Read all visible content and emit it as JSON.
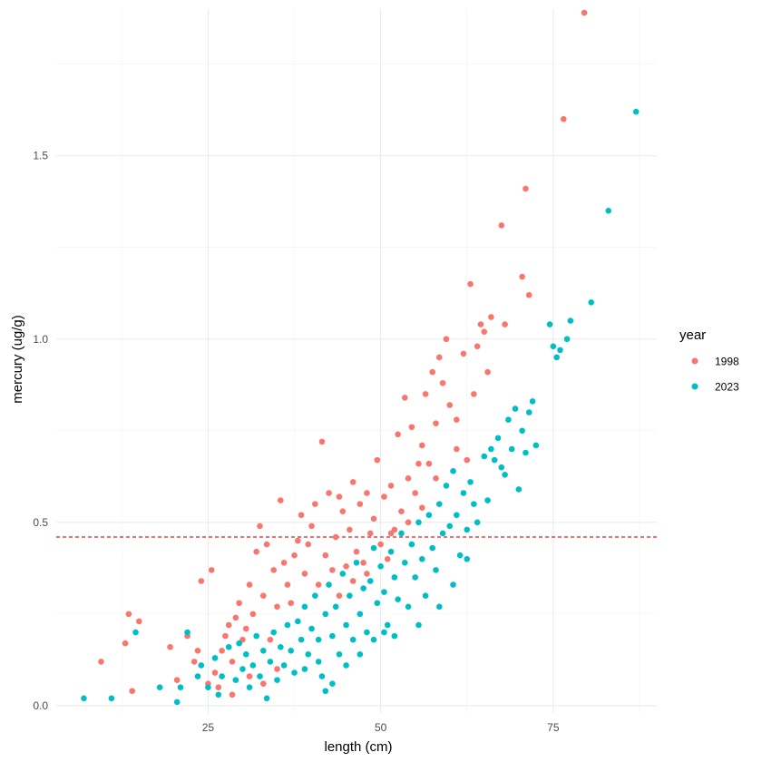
{
  "chart_data": {
    "type": "scatter",
    "xlabel": "length (cm)",
    "ylabel": "mercury (ug/g)",
    "xlim": [
      3,
      90
    ],
    "ylim": [
      -0.02,
      1.9
    ],
    "x_ticks": [
      25,
      50,
      75
    ],
    "y_ticks": [
      0.0,
      0.5,
      1.0,
      1.5
    ],
    "x_tick_labels": [
      "25",
      "50",
      "75"
    ],
    "y_tick_labels": [
      "0.0",
      "0.5",
      "1.0",
      "1.5"
    ],
    "x_minor_ticks": [
      12.5,
      37.5,
      62.5,
      87.5
    ],
    "y_minor_ticks": [
      0.25,
      0.75,
      1.25,
      1.75
    ],
    "grid": true,
    "reference_line": {
      "y": 0.46,
      "style": "dashed",
      "color": "#E41A1C"
    },
    "legend": {
      "title": "year",
      "position": "right"
    },
    "series": [
      {
        "name": "1998",
        "color": "#F8766D",
        "points": [
          [
            9.5,
            0.12
          ],
          [
            13,
            0.17
          ],
          [
            13.5,
            0.25
          ],
          [
            14,
            0.04
          ],
          [
            15,
            0.23
          ],
          [
            19.5,
            0.16
          ],
          [
            20.5,
            0.07
          ],
          [
            22,
            0.19
          ],
          [
            23,
            0.12
          ],
          [
            23.5,
            0.15
          ],
          [
            24,
            0.34
          ],
          [
            25,
            0.06
          ],
          [
            25.5,
            0.37
          ],
          [
            26,
            0.09
          ],
          [
            27,
            0.15
          ],
          [
            27.5,
            0.19
          ],
          [
            28,
            0.22
          ],
          [
            28.5,
            0.12
          ],
          [
            29,
            0.24
          ],
          [
            29.5,
            0.28
          ],
          [
            30,
            0.18
          ],
          [
            30.5,
            0.21
          ],
          [
            31,
            0.33
          ],
          [
            31.5,
            0.25
          ],
          [
            32,
            0.42
          ],
          [
            32.5,
            0.49
          ],
          [
            33,
            0.3
          ],
          [
            33.5,
            0.44
          ],
          [
            34,
            0.18
          ],
          [
            34.5,
            0.37
          ],
          [
            35,
            0.27
          ],
          [
            35.5,
            0.56
          ],
          [
            36,
            0.39
          ],
          [
            36.5,
            0.33
          ],
          [
            37,
            0.28
          ],
          [
            37.5,
            0.41
          ],
          [
            38,
            0.45
          ],
          [
            38.5,
            0.52
          ],
          [
            39,
            0.36
          ],
          [
            39.5,
            0.44
          ],
          [
            40,
            0.49
          ],
          [
            40.5,
            0.55
          ],
          [
            41,
            0.33
          ],
          [
            41.5,
            0.72
          ],
          [
            42,
            0.41
          ],
          [
            42.5,
            0.58
          ],
          [
            43,
            0.37
          ],
          [
            43.5,
            0.46
          ],
          [
            44,
            0.57
          ],
          [
            44.5,
            0.53
          ],
          [
            45,
            0.38
          ],
          [
            45.5,
            0.48
          ],
          [
            46,
            0.61
          ],
          [
            46.5,
            0.42
          ],
          [
            47,
            0.55
          ],
          [
            47.5,
            0.39
          ],
          [
            48,
            0.58
          ],
          [
            48.5,
            0.47
          ],
          [
            49,
            0.51
          ],
          [
            49.5,
            0.67
          ],
          [
            50,
            0.44
          ],
          [
            50.5,
            0.57
          ],
          [
            51,
            0.4
          ],
          [
            51.5,
            0.6
          ],
          [
            52,
            0.48
          ],
          [
            52.5,
            0.74
          ],
          [
            53,
            0.53
          ],
          [
            53.5,
            0.84
          ],
          [
            54,
            0.62
          ],
          [
            54.5,
            0.76
          ],
          [
            55,
            0.58
          ],
          [
            55.5,
            0.66
          ],
          [
            56,
            0.71
          ],
          [
            56.5,
            0.85
          ],
          [
            57,
            0.66
          ],
          [
            57.5,
            0.91
          ],
          [
            58,
            0.77
          ],
          [
            58.5,
            0.95
          ],
          [
            59,
            0.88
          ],
          [
            59.5,
            1.0
          ],
          [
            60,
            0.82
          ],
          [
            61,
            0.78
          ],
          [
            62,
            0.96
          ],
          [
            63,
            1.15
          ],
          [
            63.5,
            0.85
          ],
          [
            64,
            0.98
          ],
          [
            64.5,
            1.04
          ],
          [
            65,
            1.02
          ],
          [
            65.5,
            0.91
          ],
          [
            66,
            1.06
          ],
          [
            67.5,
            1.31
          ],
          [
            68,
            1.04
          ],
          [
            70.5,
            1.17
          ],
          [
            71,
            1.41
          ],
          [
            71.5,
            1.12
          ],
          [
            76.5,
            1.6
          ],
          [
            79.5,
            1.89
          ],
          [
            26.5,
            0.05
          ],
          [
            28.5,
            0.03
          ],
          [
            31,
            0.08
          ],
          [
            33,
            0.06
          ],
          [
            35,
            0.1
          ],
          [
            44,
            0.3
          ],
          [
            46,
            0.34
          ],
          [
            48,
            0.36
          ],
          [
            51.5,
            0.47
          ],
          [
            54,
            0.5
          ],
          [
            56,
            0.54
          ],
          [
            58,
            0.62
          ],
          [
            61,
            0.7
          ],
          [
            62.5,
            0.67
          ]
        ]
      },
      {
        "name": "2023",
        "color": "#00BFC4",
        "points": [
          [
            7,
            0.02
          ],
          [
            11,
            0.02
          ],
          [
            14.5,
            0.2
          ],
          [
            18,
            0.05
          ],
          [
            20.5,
            0.01
          ],
          [
            21,
            0.05
          ],
          [
            22,
            0.2
          ],
          [
            23.5,
            0.08
          ],
          [
            24,
            0.11
          ],
          [
            25,
            0.05
          ],
          [
            26,
            0.13
          ],
          [
            26.5,
            0.03
          ],
          [
            27,
            0.08
          ],
          [
            28,
            0.16
          ],
          [
            29,
            0.07
          ],
          [
            29.5,
            0.17
          ],
          [
            30,
            0.1
          ],
          [
            30.5,
            0.14
          ],
          [
            31,
            0.05
          ],
          [
            31.5,
            0.11
          ],
          [
            32,
            0.19
          ],
          [
            32.5,
            0.08
          ],
          [
            33,
            0.15
          ],
          [
            33.5,
            0.02
          ],
          [
            34,
            0.12
          ],
          [
            34.5,
            0.2
          ],
          [
            35,
            0.07
          ],
          [
            35.5,
            0.16
          ],
          [
            36,
            0.11
          ],
          [
            36.5,
            0.22
          ],
          [
            37,
            0.15
          ],
          [
            37.5,
            0.09
          ],
          [
            38,
            0.23
          ],
          [
            38.5,
            0.18
          ],
          [
            39,
            0.27
          ],
          [
            39.5,
            0.14
          ],
          [
            40,
            0.21
          ],
          [
            40.5,
            0.3
          ],
          [
            41,
            0.18
          ],
          [
            41.5,
            0.08
          ],
          [
            42,
            0.25
          ],
          [
            42.5,
            0.33
          ],
          [
            43,
            0.19
          ],
          [
            43.5,
            0.27
          ],
          [
            44,
            0.14
          ],
          [
            44.5,
            0.36
          ],
          [
            45,
            0.22
          ],
          [
            45.5,
            0.3
          ],
          [
            46,
            0.18
          ],
          [
            46.5,
            0.39
          ],
          [
            47,
            0.25
          ],
          [
            47.5,
            0.32
          ],
          [
            48,
            0.2
          ],
          [
            48.5,
            0.34
          ],
          [
            49,
            0.43
          ],
          [
            49.5,
            0.28
          ],
          [
            50,
            0.38
          ],
          [
            50.5,
            0.31
          ],
          [
            51,
            0.22
          ],
          [
            51.5,
            0.42
          ],
          [
            52,
            0.35
          ],
          [
            52.5,
            0.29
          ],
          [
            53,
            0.47
          ],
          [
            53.5,
            0.39
          ],
          [
            54,
            0.27
          ],
          [
            54.5,
            0.44
          ],
          [
            55,
            0.35
          ],
          [
            55.5,
            0.5
          ],
          [
            56,
            0.4
          ],
          [
            56.5,
            0.3
          ],
          [
            57,
            0.52
          ],
          [
            57.5,
            0.43
          ],
          [
            58,
            0.37
          ],
          [
            58.5,
            0.55
          ],
          [
            59,
            0.47
          ],
          [
            59.5,
            0.6
          ],
          [
            60,
            0.49
          ],
          [
            60.5,
            0.64
          ],
          [
            61,
            0.52
          ],
          [
            61.5,
            0.41
          ],
          [
            62,
            0.58
          ],
          [
            62.5,
            0.48
          ],
          [
            63,
            0.61
          ],
          [
            63.5,
            0.55
          ],
          [
            64,
            0.5
          ],
          [
            65,
            0.68
          ],
          [
            65.5,
            0.56
          ],
          [
            66,
            0.7
          ],
          [
            66.5,
            0.67
          ],
          [
            67,
            0.73
          ],
          [
            67.5,
            0.65
          ],
          [
            68,
            0.63
          ],
          [
            68.5,
            0.78
          ],
          [
            69,
            0.7
          ],
          [
            69.5,
            0.81
          ],
          [
            70,
            0.59
          ],
          [
            70.5,
            0.75
          ],
          [
            71,
            0.69
          ],
          [
            71.5,
            0.8
          ],
          [
            72,
            0.83
          ],
          [
            72.5,
            0.71
          ],
          [
            74.5,
            1.04
          ],
          [
            75,
            0.98
          ],
          [
            75.5,
            0.95
          ],
          [
            76,
            0.97
          ],
          [
            77,
            1.0
          ],
          [
            77.5,
            1.05
          ],
          [
            80.5,
            1.1
          ],
          [
            83,
            1.35
          ],
          [
            87,
            1.62
          ],
          [
            42,
            0.04
          ],
          [
            39,
            0.1
          ],
          [
            41,
            0.12
          ],
          [
            43,
            0.06
          ],
          [
            45,
            0.11
          ],
          [
            47,
            0.14
          ],
          [
            49,
            0.18
          ],
          [
            50.5,
            0.2
          ],
          [
            52,
            0.19
          ],
          [
            55.5,
            0.22
          ],
          [
            58.5,
            0.27
          ],
          [
            60.5,
            0.33
          ],
          [
            62.5,
            0.4
          ]
        ]
      }
    ]
  }
}
